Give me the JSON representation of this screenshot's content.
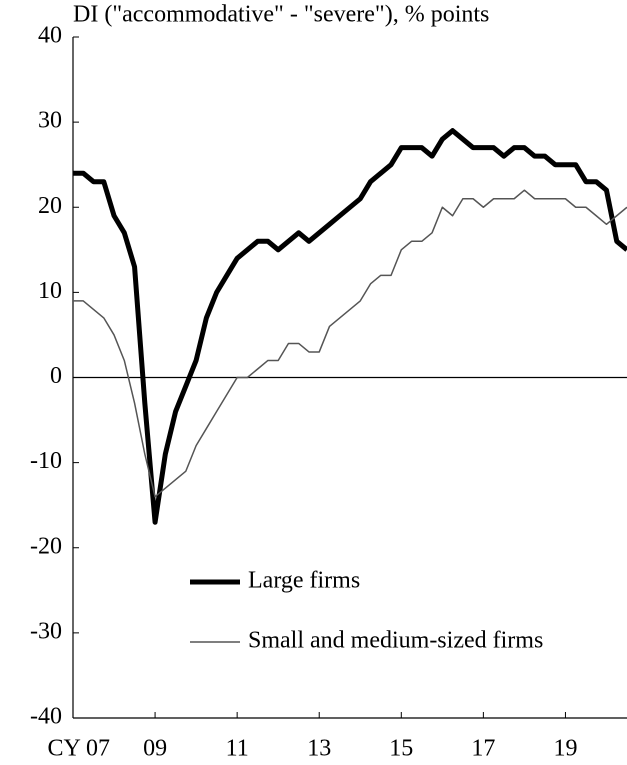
{
  "chart_data": {
    "type": "line",
    "subtitle": "DI (\"accommodative\" - \"severe\"), % points",
    "categories": [
      "CY 07",
      null,
      null,
      null,
      null,
      null,
      null,
      null,
      "09",
      null,
      null,
      null,
      null,
      null,
      null,
      null,
      "11",
      null,
      null,
      null,
      null,
      null,
      null,
      null,
      "13",
      null,
      null,
      null,
      null,
      null,
      null,
      null,
      "15",
      null,
      null,
      null,
      null,
      null,
      null,
      null,
      "17",
      null,
      null,
      null,
      null,
      null,
      null,
      null,
      "19",
      null,
      null,
      null,
      null,
      null,
      null
    ],
    "series": [
      {
        "name": "Large firms",
        "color": "#000000",
        "width": 5,
        "values": [
          24,
          24,
          23,
          23,
          19,
          17,
          13,
          -3,
          -17,
          -9,
          -4,
          -1,
          2,
          7,
          10,
          12,
          14,
          15,
          16,
          16,
          15,
          16,
          17,
          16,
          17,
          18,
          19,
          20,
          21,
          23,
          24,
          25,
          27,
          27,
          27,
          26,
          28,
          29,
          28,
          27,
          27,
          27,
          26,
          27,
          27,
          26,
          26,
          25,
          25,
          25,
          23,
          23,
          22,
          16,
          15
        ]
      },
      {
        "name": "Small and medium-sized firms",
        "color": "#555555",
        "width": 1.5,
        "values": [
          9,
          9,
          8,
          7,
          5,
          2,
          -3,
          -9,
          -14,
          -13,
          -12,
          -11,
          -8,
          -6,
          -4,
          -2,
          0,
          0,
          1,
          2,
          2,
          4,
          4,
          3,
          3,
          6,
          7,
          8,
          9,
          11,
          12,
          12,
          15,
          16,
          16,
          17,
          20,
          19,
          21,
          21,
          20,
          21,
          21,
          21,
          22,
          21,
          21,
          21,
          21,
          20,
          20,
          19,
          18,
          19,
          20
        ]
      }
    ],
    "ylim": [
      -40,
      40
    ],
    "yticks": [
      -40,
      -30,
      -20,
      -10,
      0,
      10,
      20,
      30,
      40
    ]
  }
}
